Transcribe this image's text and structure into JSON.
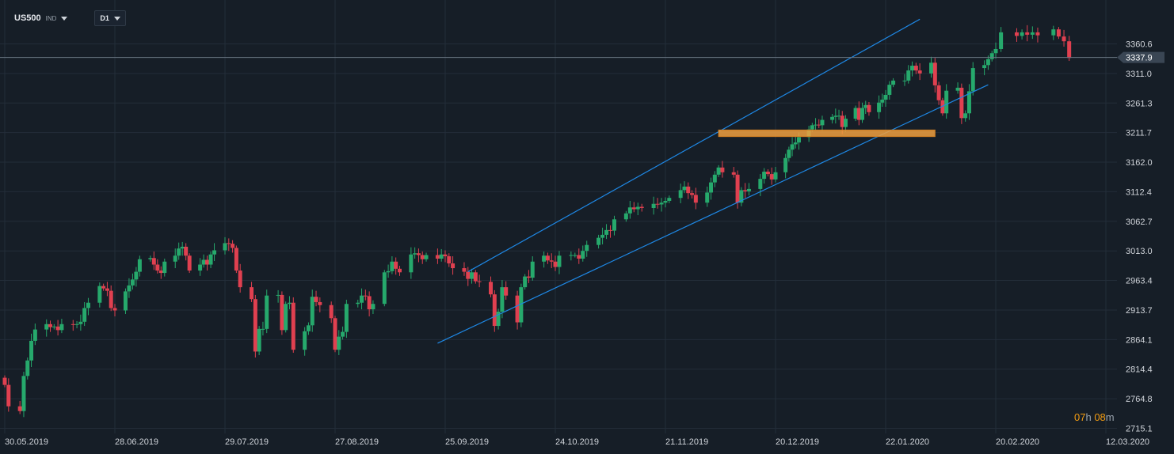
{
  "header": {
    "symbol": "US500",
    "symbol_type": "IND",
    "timeframe": "D1"
  },
  "countdown": {
    "hours": "07",
    "h_unit": "h",
    "minutes": "08",
    "m_unit": "m"
  },
  "colors": {
    "background": "#161e27",
    "grid": "#232d39",
    "axis_text": "#d0d4da",
    "up_candle": "#26a96c",
    "down_candle": "#e04050",
    "channel": "#1e88e5",
    "zone_fill": "#f0a040",
    "price_line": "#6b7785",
    "price_label_bg": "#3a4654",
    "countdown": "#f39c12"
  },
  "chart_data": {
    "type": "candlestick",
    "title": "",
    "xlabel": "",
    "ylabel": "",
    "ylim": [
      2715.1,
      3410
    ],
    "grid": true,
    "y_ticks": [
      "3360.6",
      "3311.0",
      "3261.3",
      "3211.7",
      "3162.0",
      "3112.4",
      "3062.7",
      "3013.0",
      "2963.4",
      "2913.7",
      "2864.1",
      "2814.4",
      "2764.8",
      "2715.1"
    ],
    "x_ticks": [
      "30.05.2019",
      "28.06.2019",
      "29.07.2019",
      "27.08.2019",
      "25.09.2019",
      "24.10.2019",
      "21.11.2019",
      "20.12.2019",
      "22.01.2020",
      "20.02.2020",
      "12.03.2020"
    ],
    "current_price": "3337.9",
    "closes": [
      2788,
      2752,
      2744,
      2803,
      2829,
      2862,
      2881,
      2890,
      2885,
      2886,
      2880,
      2890,
      2889,
      2890,
      2894,
      2917,
      2926,
      2954,
      2950,
      2946,
      2917,
      2913,
      2945,
      2955,
      2965,
      2978,
      2999,
      3001,
      2990,
      2980,
      2976,
      2995,
      3005,
      3017,
      3020,
      3005,
      2980,
      2990,
      2998,
      2990,
      3007,
      3014,
      3026,
      3025,
      3018,
      2980,
      2952,
      2932,
      2844,
      2882,
      2882,
      2938,
      2939,
      2880,
      2924,
      2926,
      2847,
      2878,
      2888,
      2936,
      2927,
      2922,
      2900,
      2847,
      2869,
      2877,
      2924,
      2926,
      2938,
      2937,
      2915,
      2924,
      2977,
      2979,
      2995,
      2983,
      2977,
      3007,
      3009,
      3006,
      2999,
      3006,
      3000,
      3007,
      3004,
      2992,
      2984,
      2978,
      2966,
      2977,
      2962,
      2961,
      2940,
      2887,
      2911,
      2952,
      2938,
      2893,
      2952,
      2970,
      2968,
      2995,
      3005,
      2997,
      2995,
      2986,
      3005,
      3006,
      3006,
      3000,
      3013,
      3023,
      3035,
      3040,
      3048,
      3047,
      3066,
      3076,
      3086,
      3083,
      3087,
      3085,
      3092,
      3091,
      3094,
      3097,
      3102,
      3115,
      3121,
      3110,
      3107,
      3094,
      3111,
      3128,
      3141,
      3153,
      3145,
      3141,
      3094,
      3115,
      3113,
      3117,
      3134,
      3146,
      3142,
      3133,
      3145,
      3169,
      3183,
      3192,
      3195,
      3204,
      3217,
      3224,
      3225,
      3224,
      3233,
      3238,
      3240,
      3240,
      3221,
      3235,
      3253,
      3233,
      3253,
      3258,
      3246,
      3262,
      3267,
      3275,
      3292,
      3299,
      3299,
      3316,
      3324,
      3316,
      3311,
      3329,
      3291,
      3266,
      3244,
      3282,
      3287,
      3236,
      3244,
      3281,
      3320,
      3325,
      3335,
      3345,
      3352,
      3380,
      3374,
      3380,
      3376,
      3380,
      3375,
      3385,
      3373,
      3365,
      3337
    ],
    "channel_upper": [
      {
        "x_date": "01.10.2019",
        "y": 2978
      },
      {
        "x_date": "31.01.2020",
        "y": 3402
      }
    ],
    "channel_lower": [
      {
        "x_date": "23.09.2019",
        "y": 2858
      },
      {
        "x_date": "18.02.2020",
        "y": 3292
      }
    ],
    "zone": {
      "y_top": 3216,
      "y_bottom": 3205,
      "x_start": "05.12.2019",
      "x_end": "04.02.2020"
    }
  }
}
